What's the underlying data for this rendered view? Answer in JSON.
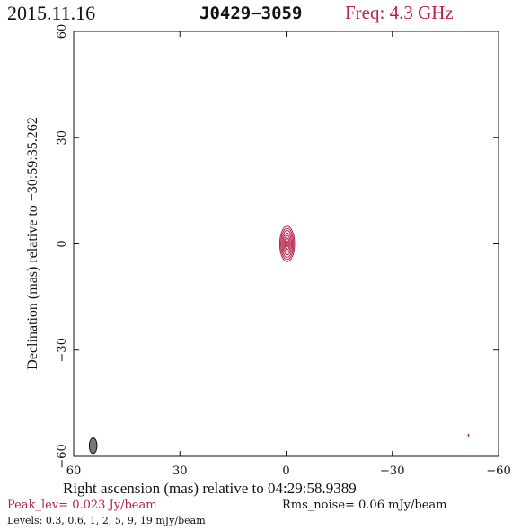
{
  "header": {
    "date": "2015.11.16",
    "source": "J0429−3059",
    "frequency": "Freq: 4.3 GHz"
  },
  "footer": {
    "peak_level": "Peak_lev=  0.023 Jy/beam",
    "rms_noise": "Rms_noise= 0.06 mJy/beam",
    "levels": "Levels: 0.3, 0.6,   1,   2,   5,   9,  19 mJy/beam"
  },
  "colors": {
    "contour": "#b5224a",
    "beam": "#777777",
    "axes": "#111111"
  },
  "chart_data": {
    "type": "contour",
    "xlabel": "Right ascension (mas) relative to 04:29:58.9389",
    "ylabel": "Declination (mas) relative to −30:59:35.262",
    "xlim": [
      60,
      -60
    ],
    "ylim": [
      -60,
      60
    ],
    "x_ticks": [
      60,
      30,
      0,
      -30,
      -60
    ],
    "y_ticks": [
      -60,
      -30,
      0,
      30,
      60
    ],
    "x_tick_labels": [
      "60",
      "30",
      "0",
      "−30",
      "−60"
    ],
    "y_tick_labels": [
      "−60",
      "−30",
      "0",
      "30",
      "60"
    ],
    "contour_levels_mJy": [
      0.3,
      0.6,
      1,
      2,
      5,
      9,
      19
    ],
    "source_component": {
      "ra_mas": -0.3,
      "dec_mas": 0,
      "contours": [
        {
          "level": 0.3,
          "half_width_mas": 2.1,
          "half_height_mas": 5.0
        },
        {
          "level": 0.6,
          "half_width_mas": 1.8,
          "half_height_mas": 4.4
        },
        {
          "level": 1,
          "half_width_mas": 1.5,
          "half_height_mas": 3.8
        },
        {
          "level": 2,
          "half_width_mas": 1.2,
          "half_height_mas": 3.1
        },
        {
          "level": 5,
          "half_width_mas": 0.9,
          "half_height_mas": 2.4
        },
        {
          "level": 9,
          "half_width_mas": 0.6,
          "half_height_mas": 1.7
        },
        {
          "level": 19,
          "half_width_mas": 0.3,
          "half_height_mas": 0.9
        }
      ]
    },
    "noise_feature": {
      "ra_mas": -51.5,
      "dec_mas": -54
    },
    "beam": {
      "ra_mas": 54.5,
      "dec_mas": -57,
      "half_width_mas": 1.1,
      "half_height_mas": 2.2
    }
  }
}
